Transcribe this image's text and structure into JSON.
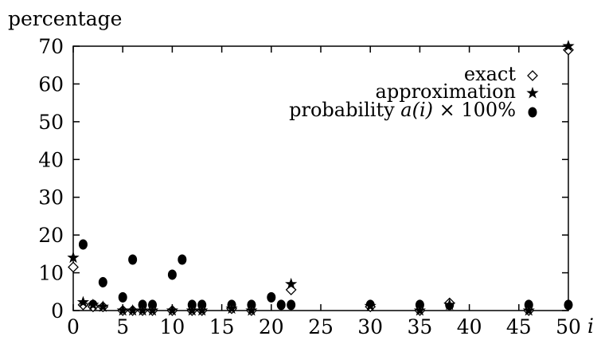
{
  "chart_data": {
    "type": "scatter",
    "ylabel": "percentage",
    "xlabel": "i",
    "xlim": [
      0,
      50
    ],
    "ylim": [
      0,
      70
    ],
    "xticks": [
      0,
      5,
      10,
      15,
      20,
      25,
      30,
      35,
      40,
      45,
      50
    ],
    "yticks": [
      0,
      10,
      20,
      30,
      40,
      50,
      60,
      70
    ],
    "grid": false,
    "legend_position": "top-right",
    "series": [
      {
        "name": "exact",
        "marker": "diamond",
        "points": [
          [
            0,
            11.5
          ],
          [
            1,
            1.5
          ],
          [
            2,
            1.0
          ],
          [
            3,
            1.0
          ],
          [
            5,
            0
          ],
          [
            6,
            0
          ],
          [
            7,
            0
          ],
          [
            8,
            0
          ],
          [
            10,
            0
          ],
          [
            12,
            0
          ],
          [
            13,
            0
          ],
          [
            16,
            0.5
          ],
          [
            18,
            0
          ],
          [
            22,
            5.5
          ],
          [
            30,
            1.0
          ],
          [
            35,
            0
          ],
          [
            38,
            2.0
          ],
          [
            46,
            0
          ],
          [
            50,
            69
          ]
        ]
      },
      {
        "name": "approximation",
        "marker": "star",
        "points": [
          [
            0,
            14
          ],
          [
            1,
            2.2
          ],
          [
            2,
            1.5
          ],
          [
            3,
            1.0
          ],
          [
            5,
            0
          ],
          [
            6,
            0
          ],
          [
            7,
            0
          ],
          [
            8,
            0
          ],
          [
            10,
            0
          ],
          [
            12,
            0
          ],
          [
            13,
            0
          ],
          [
            16,
            0.5
          ],
          [
            18,
            0
          ],
          [
            22,
            7
          ],
          [
            30,
            1.2
          ],
          [
            35,
            0
          ],
          [
            38,
            1.5
          ],
          [
            46,
            0
          ],
          [
            50,
            70
          ]
        ]
      },
      {
        "name": "probability a(i) × 100%",
        "marker": "circle",
        "points": [
          [
            1,
            17.5
          ],
          [
            2,
            1.5
          ],
          [
            3,
            7.5
          ],
          [
            5,
            3.5
          ],
          [
            6,
            13.5
          ],
          [
            7,
            1.5
          ],
          [
            8,
            1.5
          ],
          [
            10,
            9.5
          ],
          [
            11,
            13.5
          ],
          [
            12,
            1.5
          ],
          [
            13,
            1.5
          ],
          [
            16,
            1.5
          ],
          [
            18,
            1.5
          ],
          [
            20,
            3.5
          ],
          [
            21,
            1.5
          ],
          [
            22,
            1.5
          ],
          [
            30,
            1.5
          ],
          [
            35,
            1.5
          ],
          [
            38,
            1.5
          ],
          [
            46,
            1.5
          ],
          [
            50,
            1.5
          ]
        ]
      }
    ]
  },
  "legend": {
    "exact": "exact",
    "approximation": "approximation",
    "probability_prefix": "probability ",
    "probability_math": "a(i)",
    "probability_suffix": " × 100%"
  }
}
